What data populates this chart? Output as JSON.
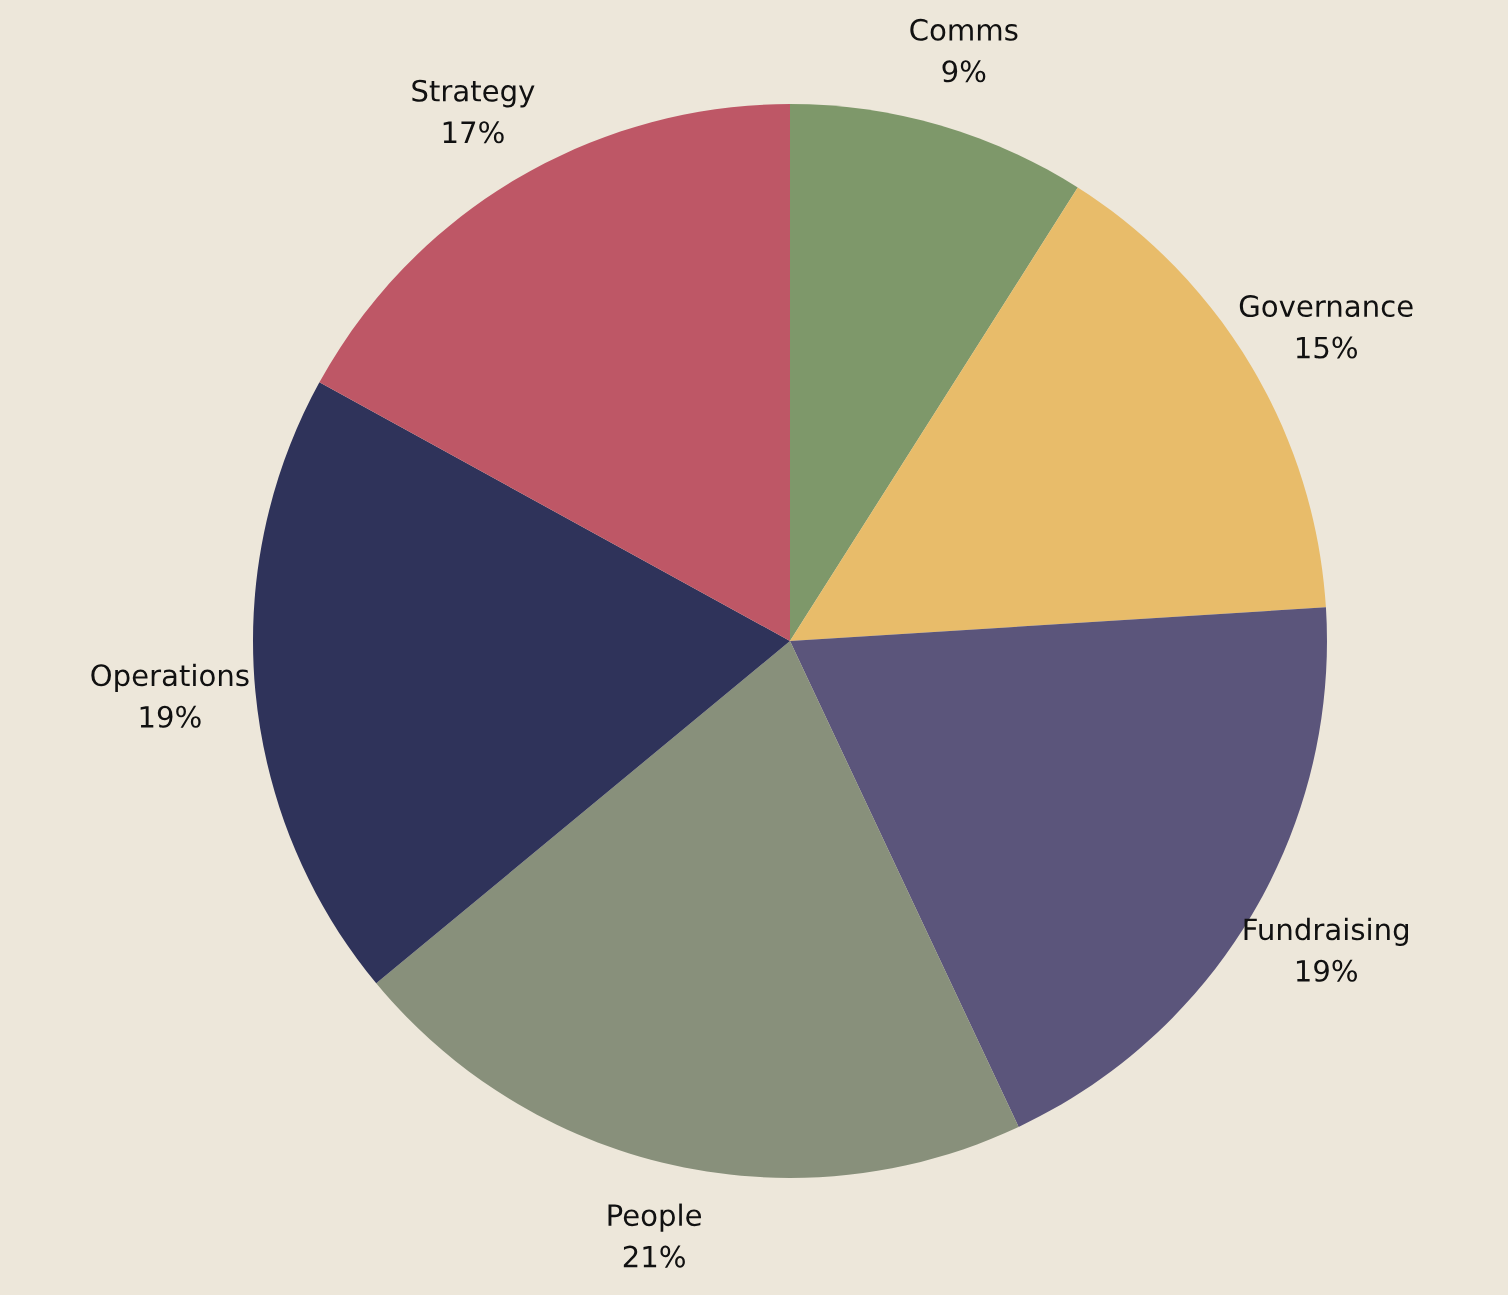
{
  "chart_data": {
    "type": "pie",
    "categories": [
      "Comms",
      "Governance",
      "Fundraising",
      "People",
      "Operations",
      "Strategy"
    ],
    "values": [
      9,
      15,
      19,
      21,
      19,
      17
    ],
    "value_labels": [
      "9%",
      "15%",
      "19%",
      "21%",
      "19%",
      "17%"
    ],
    "colors": [
      "#7e986a",
      "#e8bc6a",
      "#5b557b",
      "#88907b",
      "#2f335a",
      "#be5766"
    ],
    "legend": false
  }
}
